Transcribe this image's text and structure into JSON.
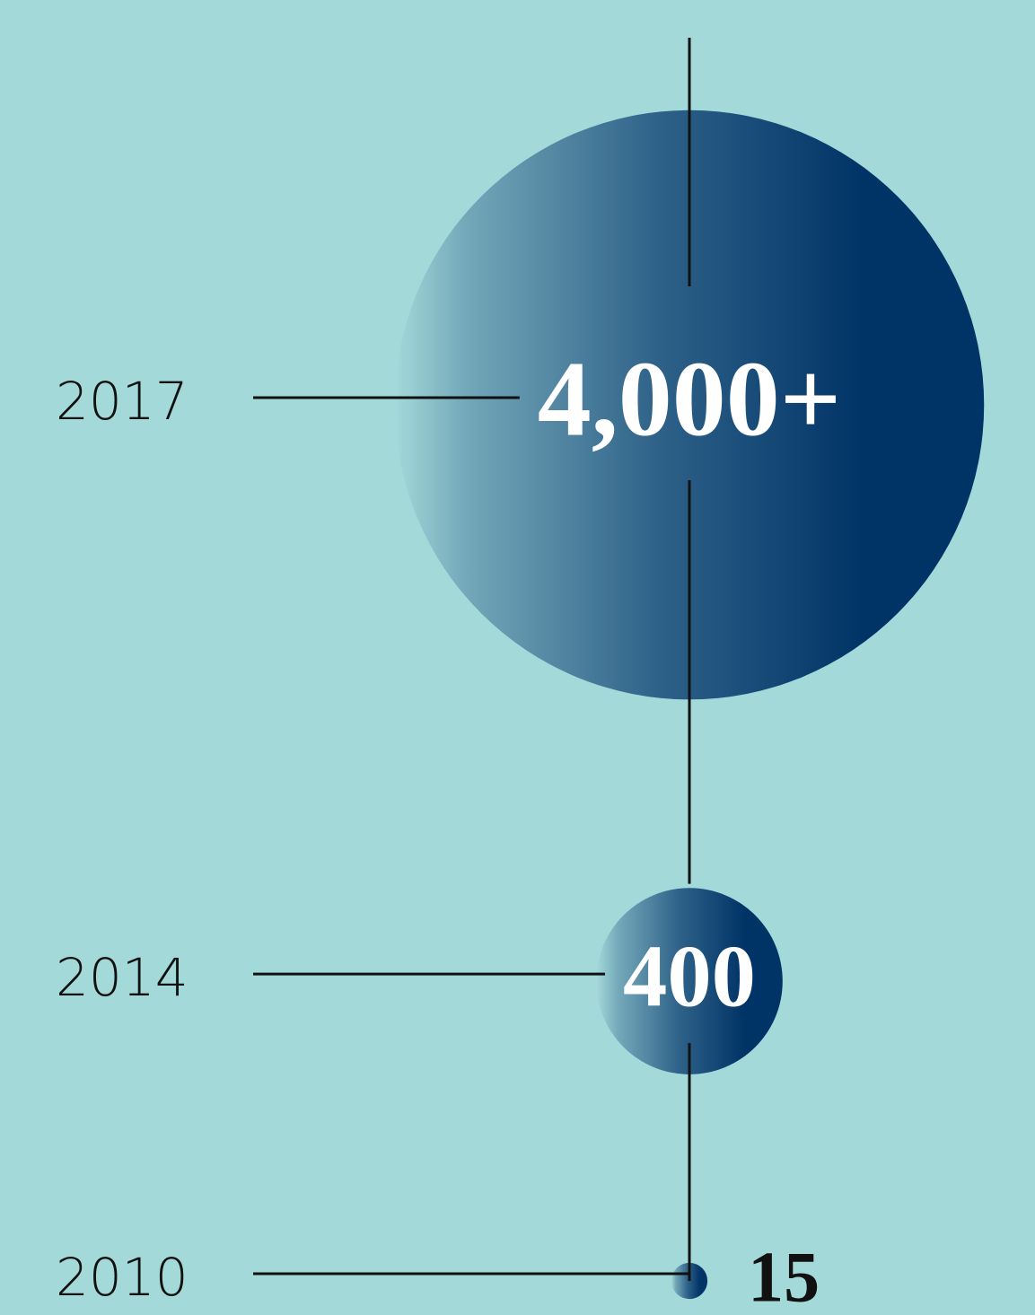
{
  "chart_data": {
    "type": "bubble",
    "categories": [
      "2010",
      "2014",
      "2017"
    ],
    "values": [
      15,
      400,
      4000
    ],
    "value_labels": [
      "15",
      "400",
      "4,000+"
    ],
    "color": "#003366",
    "background": "#a4d9da"
  }
}
